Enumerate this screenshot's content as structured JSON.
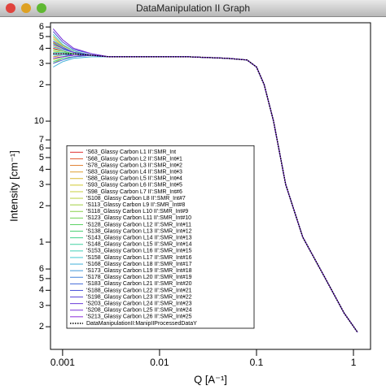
{
  "window_title": "DataManipulation II Graph",
  "chart_data": {
    "type": "line",
    "xlog": true,
    "ylog": true,
    "xlabel": "Q [A⁻¹]",
    "ylabel": "Intensity [cm⁻¹]",
    "xlim": [
      0.00075,
      1.5
    ],
    "ylim": [
      0.13,
      65
    ],
    "xticks": [
      {
        "value": 0.001,
        "label": "0.001"
      },
      {
        "value": 0.01,
        "label": "0.01"
      },
      {
        "value": 0.1,
        "label": "0.1"
      },
      1
    ],
    "yticks": [
      {
        "value": 60,
        "label": "6"
      },
      {
        "value": 50,
        "label": "5"
      },
      {
        "value": 40,
        "label": "4"
      },
      {
        "value": 30,
        "label": "3"
      },
      {
        "value": 20,
        "label": "2"
      },
      10,
      7,
      6,
      5,
      4,
      3,
      2,
      1,
      {
        "value": 0.6,
        "label": "6"
      },
      {
        "value": 0.5,
        "label": "5"
      },
      {
        "value": 0.4,
        "label": "4"
      },
      {
        "value": 0.3,
        "label": "3"
      },
      {
        "value": 0.2,
        "label": "2"
      }
    ],
    "legend": "lower left",
    "x": [
      0.0008,
      0.001,
      0.0013,
      0.002,
      0.003,
      0.005,
      0.01,
      0.02,
      0.05,
      0.08,
      0.1,
      0.12,
      0.15,
      0.2,
      0.3,
      0.5,
      0.8,
      1.1
    ],
    "series": [
      {
        "name": "'S63_Glassy Carbon L1 II':SMR_Int",
        "color": "#e03030",
        "values": [
          40,
          38,
          36,
          35,
          34,
          34,
          34,
          34,
          33,
          32,
          28,
          20,
          10,
          3,
          1.1,
          0.52,
          0.26,
          0.18
        ]
      },
      {
        "name": "'S68_Glassy Carbon L2 II':SMR_Int#1",
        "color": "#e05a30",
        "values": [
          45,
          40,
          37,
          35,
          34,
          34,
          34,
          34,
          33,
          32,
          28,
          20,
          10,
          3,
          1.1,
          0.52,
          0.26,
          0.18
        ]
      },
      {
        "name": "'S78_Glassy Carbon L3 II':SMR_Int#2",
        "color": "#e08030",
        "values": [
          34,
          35,
          35,
          35,
          34,
          34,
          34,
          34,
          33,
          32,
          28,
          20,
          10,
          3,
          1.1,
          0.52,
          0.26,
          0.18
        ]
      },
      {
        "name": "'S83_Glassy Carbon L4 II':SMR_Int#3",
        "color": "#e0a030",
        "values": [
          50,
          42,
          38,
          35,
          34,
          34,
          34,
          34,
          33,
          32,
          28,
          20,
          10,
          3,
          1.1,
          0.52,
          0.26,
          0.18
        ]
      },
      {
        "name": "'S88_Glassy Carbon L5 II':SMR_Int#4",
        "color": "#d8b830",
        "values": [
          30,
          33,
          34,
          35,
          34,
          34,
          34,
          34,
          33,
          32,
          28,
          20,
          10,
          3,
          1.1,
          0.52,
          0.26,
          0.18
        ]
      },
      {
        "name": "'S93_Glassy Carbon L6 II':SMR_Int#5",
        "color": "#d0c830",
        "values": [
          38,
          37,
          36,
          35,
          34,
          34,
          34,
          34,
          33,
          32,
          28,
          20,
          10,
          3,
          1.1,
          0.52,
          0.26,
          0.18
        ]
      },
      {
        "name": "'S98_Glassy Carbon L7 II':SMR_Int#6",
        "color": "#c8d040",
        "values": [
          42,
          39,
          37,
          35,
          34,
          34,
          34,
          34,
          33,
          32,
          28,
          20,
          10,
          3,
          1.1,
          0.52,
          0.26,
          0.18
        ]
      },
      {
        "name": "'S108_Glassy Carbon L8 II':SMR_Int#7",
        "color": "#b8d040",
        "values": [
          32,
          34,
          35,
          35,
          34,
          34,
          34,
          34,
          33,
          32,
          28,
          20,
          10,
          3,
          1.1,
          0.52,
          0.26,
          0.18
        ]
      },
      {
        "name": "'S113_Glassy Carbon L9 II':SMR_Int#8",
        "color": "#a0d040",
        "values": [
          36,
          36,
          36,
          35,
          34,
          34,
          34,
          34,
          33,
          32,
          28,
          20,
          10,
          3,
          1.1,
          0.52,
          0.26,
          0.18
        ]
      },
      {
        "name": "'S118_Glassy Carbon L10 II':SMR_Int#9",
        "color": "#88d048",
        "values": [
          48,
          41,
          37,
          35,
          34,
          34,
          34,
          34,
          33,
          32,
          28,
          20,
          10,
          3,
          1.1,
          0.52,
          0.26,
          0.18
        ]
      },
      {
        "name": "'S123_Glassy Carbon L11 II':SMR_Int#10",
        "color": "#70d050",
        "values": [
          33,
          34,
          35,
          35,
          34,
          34,
          34,
          34,
          33,
          32,
          28,
          20,
          10,
          3,
          1.1,
          0.52,
          0.26,
          0.18
        ]
      },
      {
        "name": "'S128_Glassy Carbon L12 II':SMR_Int#11",
        "color": "#58d060",
        "values": [
          39,
          38,
          36,
          35,
          34,
          34,
          34,
          34,
          33,
          32,
          28,
          20,
          10,
          3,
          1.1,
          0.52,
          0.26,
          0.18
        ]
      },
      {
        "name": "'S138_Glassy Carbon L13 II':SMR_Int#12",
        "color": "#48d070",
        "values": [
          44,
          40,
          37,
          35,
          34,
          34,
          34,
          34,
          33,
          32,
          28,
          20,
          10,
          3,
          1.1,
          0.52,
          0.26,
          0.18
        ]
      },
      {
        "name": "'S143_Glassy Carbon L14 II':SMR_Int#13",
        "color": "#40d088",
        "values": [
          31,
          33,
          34,
          35,
          34,
          34,
          34,
          34,
          33,
          32,
          28,
          20,
          10,
          3,
          1.1,
          0.52,
          0.26,
          0.18
        ]
      },
      {
        "name": "'S148_Glassy Carbon L15 II':SMR_Int#14",
        "color": "#40d0a0",
        "values": [
          37,
          37,
          36,
          35,
          34,
          34,
          34,
          34,
          33,
          32,
          28,
          20,
          10,
          3,
          1.1,
          0.52,
          0.26,
          0.18
        ]
      },
      {
        "name": "'S153_Glassy Carbon L16 II':SMR_Int#15",
        "color": "#40d0b8",
        "values": [
          52,
          43,
          38,
          35,
          34,
          34,
          34,
          34,
          33,
          32,
          28,
          20,
          10,
          3,
          1.1,
          0.52,
          0.26,
          0.18
        ]
      },
      {
        "name": "'S158_Glassy Carbon L17 II':SMR_Int#16",
        "color": "#40c8d0",
        "values": [
          35,
          35,
          35,
          35,
          34,
          34,
          34,
          34,
          33,
          32,
          28,
          20,
          10,
          3,
          1.1,
          0.52,
          0.26,
          0.18
        ]
      },
      {
        "name": "'S168_Glassy Carbon L18 II':SMR_Int#17",
        "color": "#40b0d8",
        "values": [
          28,
          31,
          33,
          34,
          34,
          34,
          34,
          34,
          33,
          32,
          28,
          20,
          10,
          3,
          1.1,
          0.52,
          0.26,
          0.18
        ]
      },
      {
        "name": "'S173_Glassy Carbon L19 II':SMR_Int#18",
        "color": "#4098d8",
        "values": [
          41,
          39,
          37,
          35,
          34,
          34,
          34,
          34,
          33,
          32,
          28,
          20,
          10,
          3,
          1.1,
          0.52,
          0.26,
          0.18
        ]
      },
      {
        "name": "'S178_Glassy Carbon L20 II':SMR_Int#19",
        "color": "#4080d8",
        "values": [
          46,
          41,
          37,
          35,
          34,
          34,
          34,
          34,
          33,
          32,
          28,
          20,
          10,
          3,
          1.1,
          0.52,
          0.26,
          0.18
        ]
      },
      {
        "name": "'S183_Glassy Carbon L21 II':SMR_Int#20",
        "color": "#4068d8",
        "values": [
          30,
          32,
          34,
          35,
          34,
          34,
          34,
          34,
          33,
          32,
          28,
          20,
          10,
          3,
          1.1,
          0.52,
          0.26,
          0.18
        ]
      },
      {
        "name": "'S188_Glassy Carbon L22 II':SMR_Int#21",
        "color": "#4850d8",
        "values": [
          55,
          45,
          39,
          36,
          34,
          34,
          34,
          34,
          33,
          32,
          28,
          20,
          10,
          3,
          1.1,
          0.52,
          0.26,
          0.18
        ]
      },
      {
        "name": "'S198_Glassy Carbon L23 II':SMR_Int#22",
        "color": "#5840d8",
        "values": [
          36,
          36,
          35,
          35,
          34,
          34,
          34,
          34,
          33,
          32,
          28,
          20,
          10,
          3,
          1.1,
          0.52,
          0.26,
          0.18
        ]
      },
      {
        "name": "'S203_Glassy Carbon L24 II':SMR_Int#23",
        "color": "#6838d8",
        "values": [
          43,
          40,
          37,
          35,
          34,
          34,
          34,
          34,
          33,
          32,
          28,
          20,
          10,
          3,
          1.1,
          0.52,
          0.26,
          0.18
        ]
      },
      {
        "name": "'S208_Glassy Carbon L25 II':SMR_Int#24",
        "color": "#7830d8",
        "values": [
          58,
          47,
          40,
          36,
          34,
          34,
          34,
          34,
          33,
          32,
          28,
          20,
          10,
          3,
          1.1,
          0.52,
          0.26,
          0.18
        ]
      },
      {
        "name": "'S213_Glassy Carbon L26 II':SMR_Int#25",
        "color": "#8828d8",
        "values": [
          33,
          34,
          35,
          35,
          34,
          34,
          34,
          34,
          33,
          32,
          28,
          20,
          10,
          3,
          1.1,
          0.52,
          0.26,
          0.18
        ]
      },
      {
        "name": "DataManipulationII:ManipIIProcessedDataY",
        "color": "#000000",
        "style": "dotted",
        "values": [
          36,
          36,
          36,
          35,
          34,
          34,
          34,
          34,
          33,
          32,
          28,
          20,
          10,
          3,
          1.1,
          0.52,
          0.26,
          0.18
        ]
      }
    ]
  }
}
